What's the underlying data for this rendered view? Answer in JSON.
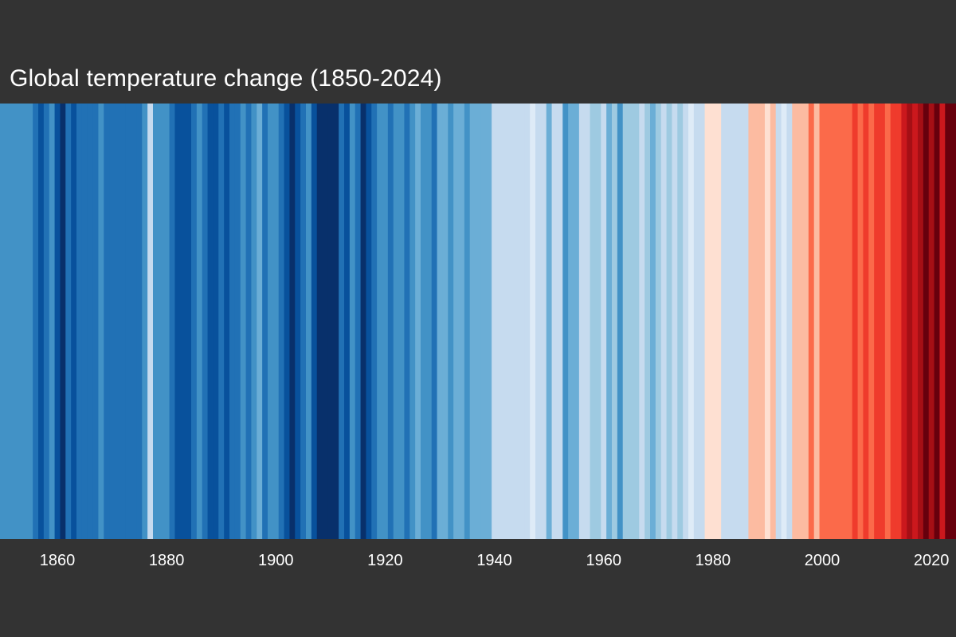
{
  "chart_data": {
    "type": "heatmap",
    "title": "Global temperature change (1850-2024)",
    "xlabel": "",
    "ylabel": "",
    "x_range": [
      1850,
      2024
    ],
    "x_tick_labels": [
      "1860",
      "1880",
      "1900",
      "1920",
      "1940",
      "1960",
      "1980",
      "2000",
      "2020"
    ],
    "years": [
      1850,
      1851,
      1852,
      1853,
      1854,
      1855,
      1856,
      1857,
      1858,
      1859,
      1860,
      1861,
      1862,
      1863,
      1864,
      1865,
      1866,
      1867,
      1868,
      1869,
      1870,
      1871,
      1872,
      1873,
      1874,
      1875,
      1876,
      1877,
      1878,
      1879,
      1880,
      1881,
      1882,
      1883,
      1884,
      1885,
      1886,
      1887,
      1888,
      1889,
      1890,
      1891,
      1892,
      1893,
      1894,
      1895,
      1896,
      1897,
      1898,
      1899,
      1900,
      1901,
      1902,
      1903,
      1904,
      1905,
      1906,
      1907,
      1908,
      1909,
      1910,
      1911,
      1912,
      1913,
      1914,
      1915,
      1916,
      1917,
      1918,
      1919,
      1920,
      1921,
      1922,
      1923,
      1924,
      1925,
      1926,
      1927,
      1928,
      1929,
      1930,
      1931,
      1932,
      1933,
      1934,
      1935,
      1936,
      1937,
      1938,
      1939,
      1940,
      1941,
      1942,
      1943,
      1944,
      1945,
      1946,
      1947,
      1948,
      1949,
      1950,
      1951,
      1952,
      1953,
      1954,
      1955,
      1956,
      1957,
      1958,
      1959,
      1960,
      1961,
      1962,
      1963,
      1964,
      1965,
      1966,
      1967,
      1968,
      1969,
      1970,
      1971,
      1972,
      1973,
      1974,
      1975,
      1976,
      1977,
      1978,
      1979,
      1980,
      1981,
      1982,
      1983,
      1984,
      1985,
      1986,
      1987,
      1988,
      1989,
      1990,
      1991,
      1992,
      1993,
      1994,
      1995,
      1996,
      1997,
      1998,
      1999,
      2000,
      2001,
      2002,
      2003,
      2004,
      2005,
      2006,
      2007,
      2008,
      2009,
      2010,
      2011,
      2012,
      2013,
      2014,
      2015,
      2016,
      2017,
      2018,
      2019,
      2020,
      2021,
      2022,
      2023,
      2024
    ],
    "stripe_colors": [
      "#4292c6",
      "#4292c6",
      "#4292c6",
      "#4292c6",
      "#4292c6",
      "#4292c6",
      "#2171b5",
      "#08519c",
      "#2171b5",
      "#4292c6",
      "#08519c",
      "#08306b",
      "#2171b5",
      "#08519c",
      "#2171b5",
      "#2171b5",
      "#2171b5",
      "#2171b5",
      "#4292c6",
      "#2171b5",
      "#2171b5",
      "#2171b5",
      "#2171b5",
      "#2171b5",
      "#2171b5",
      "#2171b5",
      "#4292c6",
      "#c6dbef",
      "#4292c6",
      "#4292c6",
      "#4292c6",
      "#2171b5",
      "#08519c",
      "#08519c",
      "#08519c",
      "#2171b5",
      "#4292c6",
      "#2171b5",
      "#08519c",
      "#08519c",
      "#2171b5",
      "#08519c",
      "#2171b5",
      "#2171b5",
      "#4292c6",
      "#2171b5",
      "#4292c6",
      "#6baed6",
      "#2171b5",
      "#4292c6",
      "#4292c6",
      "#2171b5",
      "#08519c",
      "#08306b",
      "#08519c",
      "#2171b5",
      "#4292c6",
      "#08519c",
      "#08306b",
      "#08306b",
      "#08306b",
      "#08306b",
      "#2171b5",
      "#08519c",
      "#4292c6",
      "#2171b5",
      "#08306b",
      "#08519c",
      "#2171b5",
      "#4292c6",
      "#4292c6",
      "#2171b5",
      "#4292c6",
      "#4292c6",
      "#2171b5",
      "#4292c6",
      "#6baed6",
      "#4292c6",
      "#4292c6",
      "#2171b5",
      "#6baed6",
      "#6baed6",
      "#4292c6",
      "#6baed6",
      "#6baed6",
      "#4292c6",
      "#6baed6",
      "#6baed6",
      "#6baed6",
      "#6baed6",
      "#c6dbef",
      "#c6dbef",
      "#c6dbef",
      "#c6dbef",
      "#c6dbef",
      "#c6dbef",
      "#c6dbef",
      "#deebf7",
      "#c6dbef",
      "#c6dbef",
      "#6baed6",
      "#c6dbef",
      "#c6dbef",
      "#4292c6",
      "#6baed6",
      "#6baed6",
      "#c6dbef",
      "#c6dbef",
      "#9ecae1",
      "#9ecae1",
      "#c6dbef",
      "#6baed6",
      "#9ecae1",
      "#4292c6",
      "#9ecae1",
      "#9ecae1",
      "#9ecae1",
      "#c6dbef",
      "#9ecae1",
      "#6baed6",
      "#9ecae1",
      "#c6dbef",
      "#9ecae1",
      "#c6dbef",
      "#9ecae1",
      "#c6dbef",
      "#deebf7",
      "#c6dbef",
      "#c6dbef",
      "#fee0d2",
      "#fee0d2",
      "#fee0d2",
      "#c6dbef",
      "#c6dbef",
      "#c6dbef",
      "#c6dbef",
      "#c6dbef",
      "#fcbba1",
      "#fcbba1",
      "#fcbba1",
      "#fee0d2",
      "#fcbba1",
      "#c6dbef",
      "#deebf7",
      "#c6dbef",
      "#fcbba1",
      "#fcbba1",
      "#fcbba1",
      "#fb6a4a",
      "#fcbba1",
      "#fb6a4a",
      "#fb6a4a",
      "#fb6a4a",
      "#fb6a4a",
      "#fb6a4a",
      "#fb6a4a",
      "#ef3b2c",
      "#fb6a4a",
      "#ef3b2c",
      "#fb6a4a",
      "#ef3b2c",
      "#ef3b2c",
      "#fb6a4a",
      "#ef3b2c",
      "#ef3b2c",
      "#cb181d",
      "#a50f15",
      "#cb181d",
      "#a50f15",
      "#67000d",
      "#a50f15",
      "#67000d",
      "#cb181d",
      "#67000d",
      "#67000d"
    ]
  }
}
